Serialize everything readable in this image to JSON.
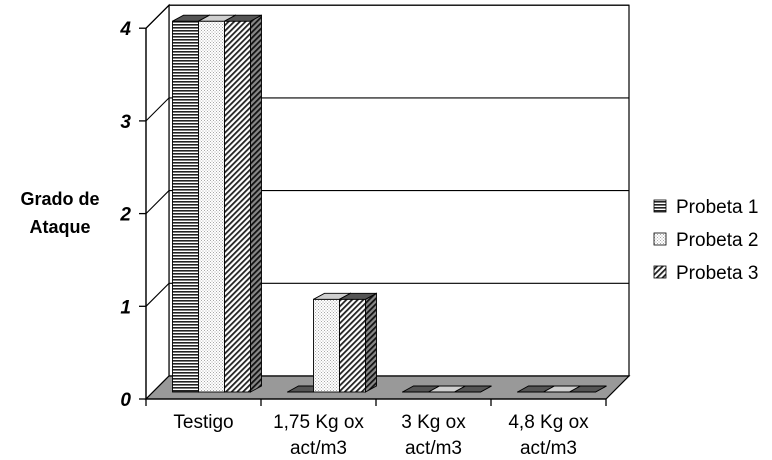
{
  "chart_data": {
    "type": "bar",
    "style": "3d-clustered",
    "categories": [
      [
        "Testigo"
      ],
      [
        "1,75 Kg ox",
        "act/m3"
      ],
      [
        "3 Kg ox",
        "act/m3"
      ],
      [
        "4,8 Kg ox",
        "act/m3"
      ]
    ],
    "series": [
      {
        "name": "Probeta 1",
        "values": [
          4,
          0,
          0,
          0
        ],
        "pattern": "horizontal-lines",
        "color": "#333333"
      },
      {
        "name": "Probeta 2",
        "values": [
          4,
          1,
          0,
          0
        ],
        "pattern": "dots",
        "color": "#bfbfbf"
      },
      {
        "name": "Probeta 3",
        "values": [
          4,
          1,
          0,
          0
        ],
        "pattern": "diagonal-lines",
        "color": "#333333"
      }
    ],
    "ylabel": [
      "Grado de",
      "Ataque"
    ],
    "yticks": [
      0,
      1,
      2,
      3,
      4
    ],
    "ylim": [
      0,
      4
    ],
    "grid": true,
    "legend": "right",
    "floor_color": "#999999"
  }
}
